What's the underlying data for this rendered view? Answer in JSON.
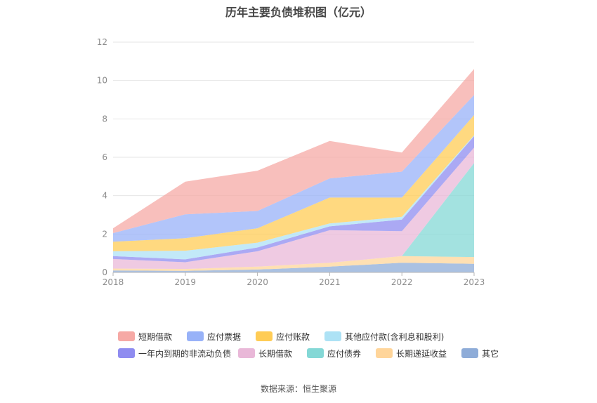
{
  "page": {
    "title": "历年主要负债堆积图（亿元）",
    "source": "数据来源：恒生聚源"
  },
  "chart_data": {
    "type": "area",
    "stacked": true,
    "x": [
      "2018",
      "2019",
      "2020",
      "2021",
      "2022",
      "2023"
    ],
    "ylim": [
      0,
      12
    ],
    "yticks": [
      "0",
      "2",
      "4",
      "6",
      "8",
      "10",
      "12"
    ],
    "grid": true,
    "legend_position": "bottom",
    "series": [
      {
        "name": "其它",
        "color": "#8eacd8",
        "values": [
          0.1,
          0.08,
          0.15,
          0.3,
          0.5,
          0.45
        ]
      },
      {
        "name": "长期递延收益",
        "color": "#ffd59a",
        "values": [
          0.1,
          0.1,
          0.15,
          0.2,
          0.35,
          0.35
        ]
      },
      {
        "name": "应付债券",
        "color": "#84d8d6",
        "values": [
          0.0,
          0.0,
          0.0,
          0.0,
          0.0,
          4.9
        ]
      },
      {
        "name": "长期借款",
        "color": "#e9b8d8",
        "values": [
          0.5,
          0.35,
          0.8,
          1.7,
          1.3,
          0.8
        ]
      },
      {
        "name": "一年内到期的非流动负债",
        "color": "#8f8cf0",
        "values": [
          0.15,
          0.15,
          0.2,
          0.2,
          0.6,
          0.6
        ]
      },
      {
        "name": "其他应付款(含利息和股利)",
        "color": "#ade2f5",
        "values": [
          0.25,
          0.45,
          0.25,
          0.15,
          0.15,
          0.05
        ]
      },
      {
        "name": "应付账款",
        "color": "#ffcc55",
        "values": [
          0.5,
          0.65,
          0.75,
          1.35,
          1.0,
          1.05
        ]
      },
      {
        "name": "应付票据",
        "color": "#98b2f8",
        "values": [
          0.45,
          1.25,
          0.9,
          1.0,
          1.35,
          1.05
        ]
      },
      {
        "name": "短期借款",
        "color": "#f6a9a5",
        "values": [
          0.25,
          1.7,
          2.1,
          1.95,
          1.0,
          1.35
        ]
      }
    ],
    "legend_order": [
      "短期借款",
      "应付票据",
      "应付账款",
      "其他应付款(含利息和股利)",
      "一年内到期的非流动负债",
      "长期借款",
      "应付债券",
      "长期递延收益",
      "其它"
    ]
  }
}
